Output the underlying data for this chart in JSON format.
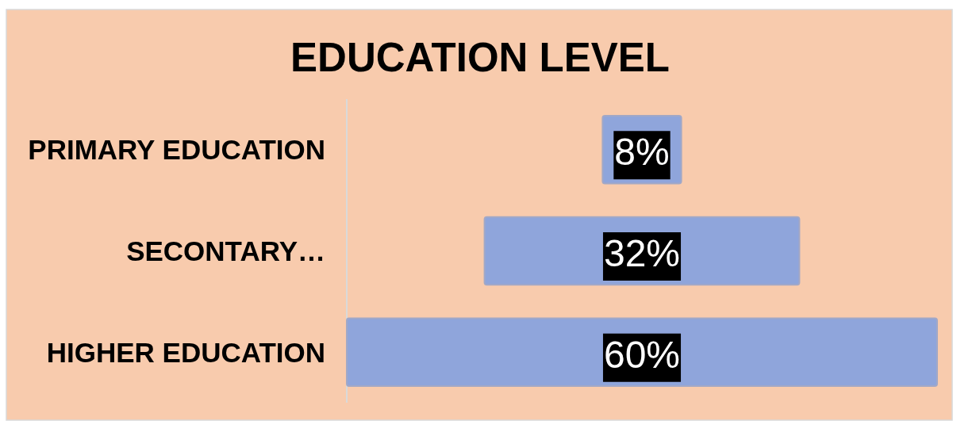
{
  "chart_data": {
    "type": "other",
    "title": "EDUCATION LEVEL",
    "categories": [
      "PRIMARY EDUCATION",
      "SECONTARY…",
      "HIGHER EDUCATION"
    ],
    "values": [
      8,
      32,
      60
    ],
    "color": "#8fa5db",
    "value_labels": [
      "8%",
      "32%",
      "60%"
    ]
  }
}
